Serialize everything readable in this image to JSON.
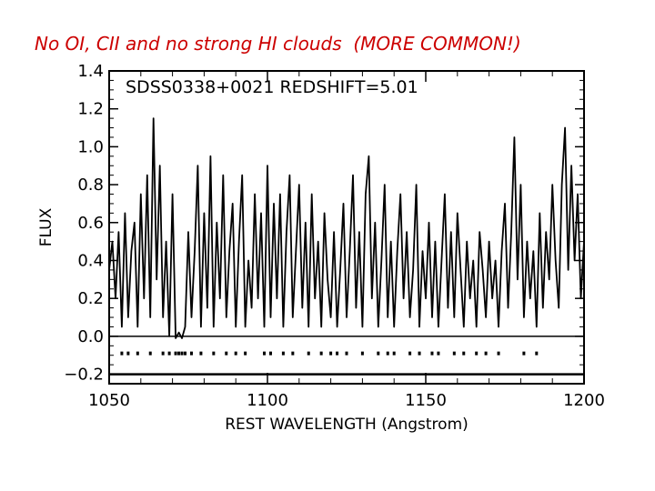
{
  "slide": {
    "title": "No OI, CII and no strong HI clouds  (MORE COMMON!)",
    "title_color": "#cc0000"
  },
  "chart_data": {
    "type": "line",
    "inset_label": "SDSS0338+0021  REDSHIFT=5.01",
    "xlabel": "REST WAVELENGTH (Angstrom)",
    "ylabel": "FLUX",
    "xlim": [
      1050,
      1200
    ],
    "ylim": [
      -0.25,
      1.4
    ],
    "x_ticks": [
      1050,
      1100,
      1150,
      1200
    ],
    "x_tick_labels": [
      "1050",
      "1100",
      "1150",
      "1200"
    ],
    "y_ticks": [
      -0.2,
      0.0,
      0.2,
      0.4,
      0.6,
      0.8,
      1.0,
      1.2,
      1.4
    ],
    "y_tick_labels": [
      "−0.2",
      "0.0",
      "0.2",
      "0.4",
      "0.6",
      "0.8",
      "1.0",
      "1.2",
      "1.4"
    ],
    "grid": false,
    "line_color": "#000000",
    "series": [
      {
        "x": [
          1050.0,
          1051.0,
          1052.0,
          1053.0,
          1054.0,
          1055.0,
          1056.0,
          1057.0,
          1058.0,
          1059.0,
          1060.0,
          1061.0,
          1062.0,
          1063.0,
          1064.0,
          1065.0,
          1066.0,
          1067.0,
          1068.0,
          1069.0,
          1070.0,
          1071.0,
          1072.0,
          1073.0,
          1074.0,
          1075.0,
          1076.0,
          1077.0,
          1078.0,
          1079.0,
          1080.0,
          1081.0,
          1082.0,
          1083.0,
          1084.0,
          1085.0,
          1086.0,
          1087.0,
          1088.0,
          1089.0,
          1090.0,
          1091.0,
          1092.0,
          1093.0,
          1094.0,
          1095.0,
          1096.0,
          1097.0,
          1098.0,
          1099.0,
          1100.0,
          1101.0,
          1102.0,
          1103.0,
          1104.0,
          1105.0,
          1106.0,
          1107.0,
          1108.0,
          1109.0,
          1110.0,
          1111.0,
          1112.0,
          1113.0,
          1114.0,
          1115.0,
          1116.0,
          1117.0,
          1118.0,
          1119.0,
          1120.0,
          1121.0,
          1122.0,
          1123.0,
          1124.0,
          1125.0,
          1126.0,
          1127.0,
          1128.0,
          1129.0,
          1130.0,
          1131.0,
          1132.0,
          1133.0,
          1134.0,
          1135.0,
          1136.0,
          1137.0,
          1138.0,
          1139.0,
          1140.0,
          1141.0,
          1142.0,
          1143.0,
          1144.0,
          1145.0,
          1146.0,
          1147.0,
          1148.0,
          1149.0,
          1150.0,
          1151.0,
          1152.0,
          1153.0,
          1154.0,
          1155.0,
          1156.0,
          1157.0,
          1158.0,
          1159.0,
          1160.0,
          1161.0,
          1162.0,
          1163.0,
          1164.0,
          1165.0,
          1166.0,
          1167.0,
          1168.0,
          1169.0,
          1170.0,
          1171.0,
          1172.0,
          1173.0,
          1174.0,
          1175.0,
          1176.0,
          1177.0,
          1178.0,
          1179.0,
          1180.0,
          1181.0,
          1182.0,
          1183.0,
          1184.0,
          1185.0,
          1186.0,
          1187.0,
          1188.0,
          1189.0,
          1190.0,
          1191.0,
          1192.0,
          1193.0,
          1194.0,
          1195.0,
          1196.0,
          1197.0,
          1198.0,
          1199.0,
          1200.0
        ],
        "y": [
          0.35,
          0.5,
          0.2,
          0.55,
          0.05,
          0.65,
          0.1,
          0.45,
          0.6,
          0.05,
          0.75,
          0.2,
          0.85,
          0.1,
          1.15,
          0.3,
          0.9,
          0.1,
          0.5,
          0.0,
          0.75,
          -0.01,
          0.02,
          -0.01,
          0.05,
          0.55,
          0.1,
          0.45,
          0.9,
          0.05,
          0.65,
          0.15,
          0.95,
          0.05,
          0.6,
          0.2,
          0.85,
          0.1,
          0.45,
          0.7,
          0.05,
          0.5,
          0.85,
          0.05,
          0.4,
          0.15,
          0.75,
          0.2,
          0.65,
          0.05,
          0.9,
          0.1,
          0.7,
          0.2,
          0.75,
          0.05,
          0.55,
          0.85,
          0.1,
          0.45,
          0.8,
          0.15,
          0.6,
          0.05,
          0.75,
          0.2,
          0.5,
          0.05,
          0.65,
          0.3,
          0.1,
          0.55,
          0.05,
          0.35,
          0.7,
          0.1,
          0.45,
          0.85,
          0.15,
          0.55,
          0.05,
          0.75,
          0.95,
          0.2,
          0.6,
          0.05,
          0.4,
          0.8,
          0.1,
          0.5,
          0.05,
          0.45,
          0.75,
          0.2,
          0.55,
          0.1,
          0.35,
          0.8,
          0.05,
          0.45,
          0.2,
          0.6,
          0.1,
          0.5,
          0.05,
          0.4,
          0.75,
          0.15,
          0.55,
          0.1,
          0.65,
          0.35,
          0.05,
          0.5,
          0.2,
          0.4,
          0.05,
          0.55,
          0.35,
          0.1,
          0.5,
          0.2,
          0.4,
          0.05,
          0.45,
          0.7,
          0.15,
          0.55,
          1.05,
          0.3,
          0.8,
          0.1,
          0.5,
          0.2,
          0.45,
          0.05,
          0.65,
          0.15,
          0.55,
          0.3,
          0.8,
          0.4,
          0.15,
          0.8,
          1.1,
          0.35,
          0.9,
          0.4,
          0.75,
          0.2,
          0.5
        ]
      }
    ]
  }
}
